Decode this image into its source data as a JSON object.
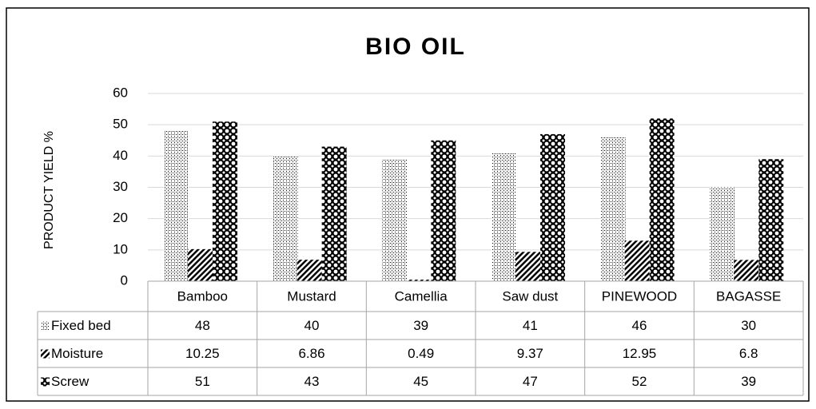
{
  "chart_data": {
    "type": "bar",
    "title": "BIO OIL",
    "y_label": "PRODUCT YIELD %",
    "categories": [
      "Bamboo",
      "Mustard",
      "Camellia",
      "Saw dust",
      "PINEWOOD",
      "BAGASSE"
    ],
    "series": [
      {
        "name": "Fixed bed",
        "color": "#000000",
        "values": [
          48,
          40,
          39,
          41,
          46,
          30
        ]
      },
      {
        "name": "Moisture",
        "color": "#000000",
        "values": [
          10.25,
          6.86,
          0.49,
          9.37,
          12.95,
          6.8
        ]
      },
      {
        "name": "Screw",
        "color": "#000000",
        "values": [
          51,
          43,
          45,
          47,
          52,
          39
        ]
      }
    ],
    "ylim": [
      0,
      60
    ],
    "yticks": [
      0,
      10,
      20,
      30,
      40,
      50,
      60
    ],
    "grid": true,
    "data_table": true
  }
}
